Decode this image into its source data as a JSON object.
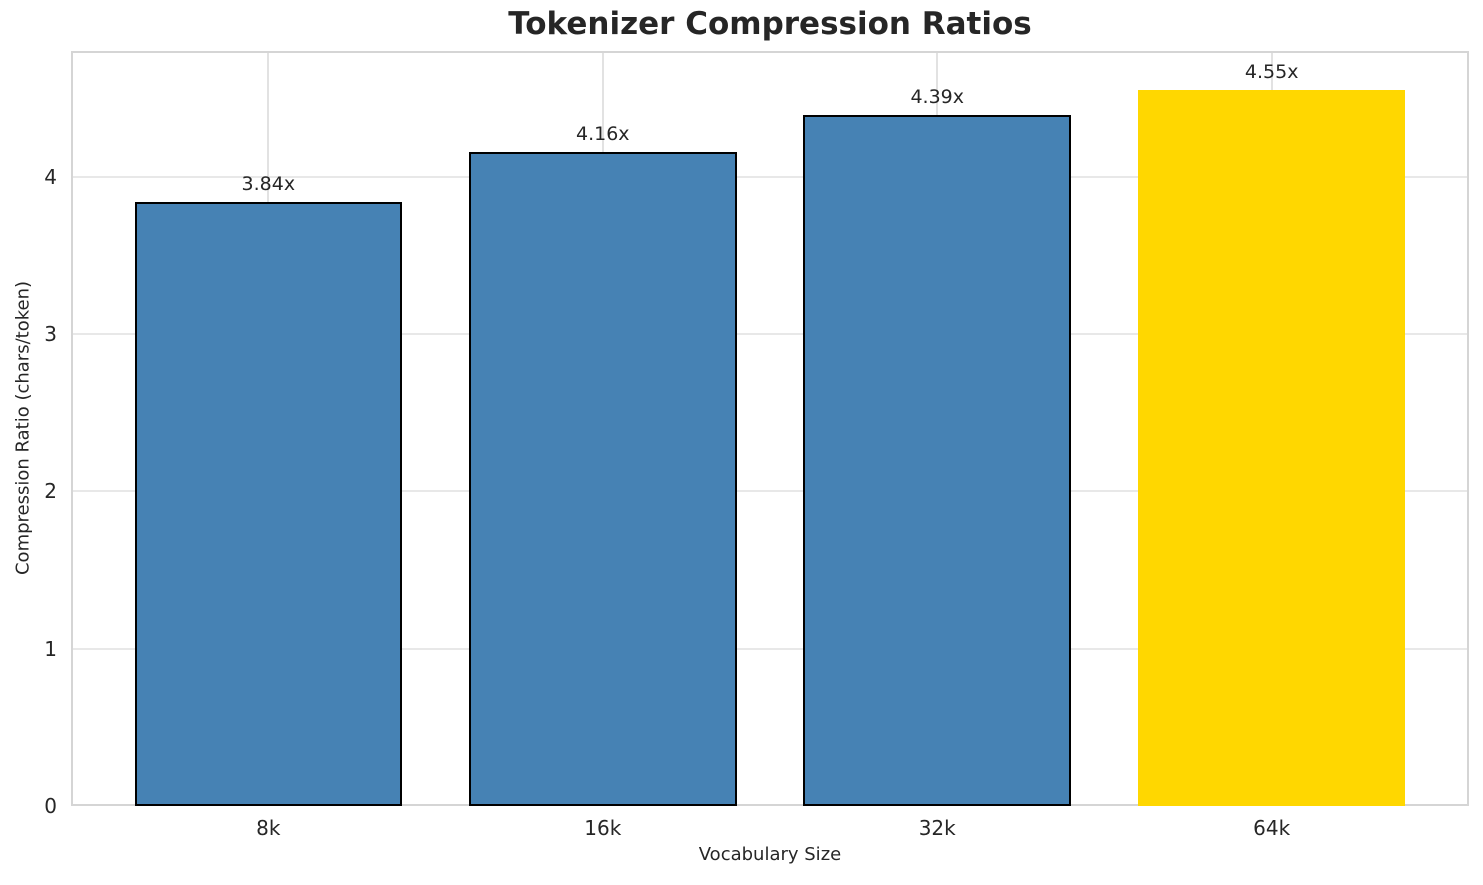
{
  "chart_data": {
    "type": "bar",
    "title": "Tokenizer Compression Ratios",
    "xlabel": "Vocabulary Size",
    "ylabel": "Compression Ratio (chars/token)",
    "categories": [
      "8k",
      "16k",
      "32k",
      "64k"
    ],
    "values": [
      3.84,
      4.16,
      4.39,
      4.55
    ],
    "bar_labels": [
      "3.84x",
      "4.16x",
      "4.39x",
      "4.55x"
    ],
    "yticks": [
      0,
      1,
      2,
      3,
      4
    ],
    "ylim": [
      0,
      4.8
    ],
    "bar_width_frac": 0.8,
    "x_margin": 0.59,
    "grid": true,
    "legend": false,
    "bar_colors": [
      "#4682B4",
      "#4682B4",
      "#4682B4",
      "#FFD700"
    ],
    "bar_edge_colors": [
      "#000000",
      "#000000",
      "#000000",
      "none"
    ],
    "highlight_color": "#FFD700",
    "base_bar_color": "#4682B4",
    "text_color": "#262626",
    "grid_color": "#e8e8e8",
    "spine_color": "#d5d5d5",
    "background": "#ffffff"
  }
}
